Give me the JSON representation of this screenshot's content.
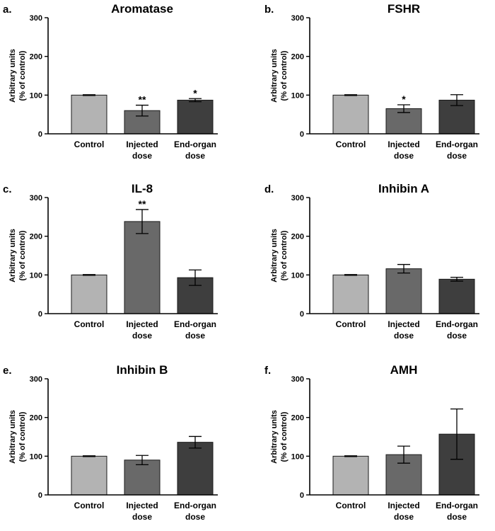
{
  "colors": {
    "axis": "#000000",
    "control": "#b3b3b3",
    "injected": "#696969",
    "end_organ": "#3e3e3e",
    "bar_edge": "#1a1a1a"
  },
  "chart_data": [
    {
      "type": "bar",
      "panel": "a.",
      "title": "Aromatase",
      "categories": [
        [
          "Control"
        ],
        [
          "Injected",
          "dose"
        ],
        [
          "End-organ",
          "dose"
        ]
      ],
      "values": [
        100,
        60,
        87
      ],
      "errors": [
        1,
        14,
        4
      ],
      "significance": [
        "",
        "**",
        "*"
      ],
      "ylabel": [
        "Arbitrary units",
        "(% of control)"
      ],
      "ylim": [
        0,
        300
      ],
      "yticks": [
        0,
        100,
        200,
        300
      ]
    },
    {
      "type": "bar",
      "panel": "b.",
      "title": "FSHR",
      "categories": [
        [
          "Control"
        ],
        [
          "Injected",
          "dose"
        ],
        [
          "End-organ",
          "dose"
        ]
      ],
      "values": [
        100,
        65,
        87
      ],
      "errors": [
        1,
        10,
        14
      ],
      "significance": [
        "",
        "*",
        ""
      ],
      "ylabel": [
        "Arbitrary units",
        "(% of control)"
      ],
      "ylim": [
        0,
        300
      ],
      "yticks": [
        0,
        100,
        200,
        300
      ]
    },
    {
      "type": "bar",
      "panel": "c.",
      "title": "IL-8",
      "categories": [
        [
          "Control"
        ],
        [
          "Injected",
          "dose"
        ],
        [
          "End-organ",
          "dose"
        ]
      ],
      "values": [
        100,
        238,
        93
      ],
      "errors": [
        1,
        31,
        20
      ],
      "significance": [
        "",
        "**",
        ""
      ],
      "ylabel": [
        "Arbitrary units",
        "(% of control)"
      ],
      "ylim": [
        0,
        300
      ],
      "yticks": [
        0,
        100,
        200,
        300
      ]
    },
    {
      "type": "bar",
      "panel": "d.",
      "title": "Inhibin A",
      "categories": [
        [
          "Control"
        ],
        [
          "Injected",
          "dose"
        ],
        [
          "End-organ",
          "dose"
        ]
      ],
      "values": [
        100,
        116,
        89
      ],
      "errors": [
        1,
        11,
        5
      ],
      "significance": [
        "",
        "",
        ""
      ],
      "ylabel": [
        "Arbitrary units",
        "(% of control)"
      ],
      "ylim": [
        0,
        300
      ],
      "yticks": [
        0,
        100,
        200,
        300
      ]
    },
    {
      "type": "bar",
      "panel": "e.",
      "title": "Inhibin B",
      "categories": [
        [
          "Control"
        ],
        [
          "Injected",
          "dose"
        ],
        [
          "End-organ",
          "dose"
        ]
      ],
      "values": [
        100,
        90,
        136
      ],
      "errors": [
        1,
        12,
        15
      ],
      "significance": [
        "",
        "",
        ""
      ],
      "ylabel": [
        "Arbitrary units",
        "(% of control)"
      ],
      "ylim": [
        0,
        300
      ],
      "yticks": [
        0,
        100,
        200,
        300
      ]
    },
    {
      "type": "bar",
      "panel": "f.",
      "title": "AMH",
      "categories": [
        [
          "Control"
        ],
        [
          "Injected",
          "dose"
        ],
        [
          "End-organ",
          "dose"
        ]
      ],
      "values": [
        100,
        104,
        157
      ],
      "errors": [
        1,
        22,
        65
      ],
      "significance": [
        "",
        "",
        ""
      ],
      "ylabel": [
        "Arbitrary units",
        "(% of control)"
      ],
      "ylim": [
        0,
        300
      ],
      "yticks": [
        0,
        100,
        200,
        300
      ]
    }
  ]
}
